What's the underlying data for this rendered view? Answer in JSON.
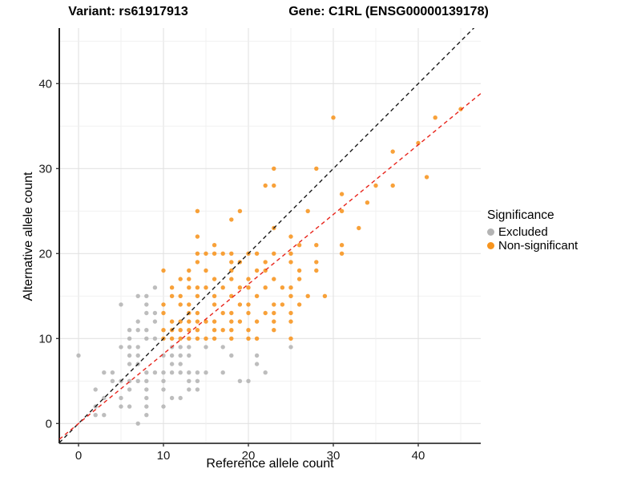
{
  "titles": {
    "variant": "Variant: rs61917913",
    "gene": "Gene: C1RL (ENSG00000139178)"
  },
  "legend": {
    "title": "Significance",
    "items": [
      {
        "label": "Excluded",
        "color": "#b4b4b4"
      },
      {
        "label": "Non-significant",
        "color": "#f7941e"
      }
    ]
  },
  "chart_data": {
    "type": "scatter",
    "title": "",
    "xlabel": "Reference allele count",
    "ylabel": "Alternative allele count",
    "x_ticks": [
      0,
      10,
      20,
      30,
      40
    ],
    "y_ticks": [
      0,
      10,
      20,
      30,
      40
    ],
    "x_range": [
      -2.26,
      47.4
    ],
    "y_range": [
      -2.33,
      46.5
    ],
    "grid": true,
    "legend_position": "right",
    "series": [
      {
        "name": "Excluded",
        "color": "#b4b4b4",
        "points": [
          [
            7,
            0
          ],
          [
            2,
            1
          ],
          [
            3,
            1
          ],
          [
            8,
            1
          ],
          [
            2,
            2
          ],
          [
            5,
            2
          ],
          [
            6,
            2
          ],
          [
            8,
            2
          ],
          [
            10,
            2
          ],
          [
            3,
            3
          ],
          [
            5,
            3
          ],
          [
            8,
            3
          ],
          [
            11,
            3
          ],
          [
            12,
            3
          ],
          [
            2,
            4
          ],
          [
            6,
            4
          ],
          [
            8,
            4
          ],
          [
            10,
            4
          ],
          [
            13,
            4
          ],
          [
            14,
            4
          ],
          [
            4,
            5
          ],
          [
            5,
            5
          ],
          [
            6,
            5
          ],
          [
            7,
            5
          ],
          [
            8,
            5
          ],
          [
            10,
            5
          ],
          [
            13,
            5
          ],
          [
            14,
            5
          ],
          [
            19,
            5
          ],
          [
            20,
            5
          ],
          [
            3,
            6
          ],
          [
            4,
            6
          ],
          [
            8,
            6
          ],
          [
            9,
            6
          ],
          [
            10,
            6
          ],
          [
            11,
            6
          ],
          [
            12,
            6
          ],
          [
            13,
            6
          ],
          [
            14,
            6
          ],
          [
            15,
            6
          ],
          [
            17,
            6
          ],
          [
            22,
            6
          ],
          [
            6,
            7
          ],
          [
            7,
            7
          ],
          [
            11,
            7
          ],
          [
            12,
            7
          ],
          [
            21,
            7
          ],
          [
            0,
            8
          ],
          [
            6,
            8
          ],
          [
            7,
            8
          ],
          [
            10,
            8
          ],
          [
            11,
            8
          ],
          [
            12,
            8
          ],
          [
            13,
            8
          ],
          [
            18,
            8
          ],
          [
            21,
            8
          ],
          [
            5,
            9
          ],
          [
            6,
            9
          ],
          [
            7,
            9
          ],
          [
            11,
            9
          ],
          [
            12,
            9
          ],
          [
            13,
            9
          ],
          [
            15,
            9
          ],
          [
            17,
            9
          ],
          [
            25,
            9
          ],
          [
            6,
            10
          ],
          [
            8,
            10
          ],
          [
            9,
            10
          ],
          [
            6,
            11
          ],
          [
            7,
            11
          ],
          [
            8,
            11
          ],
          [
            7,
            12
          ],
          [
            9,
            12
          ],
          [
            8,
            13
          ],
          [
            9,
            13
          ],
          [
            5,
            14
          ],
          [
            8,
            14
          ],
          [
            7,
            15
          ],
          [
            8,
            15
          ],
          [
            9,
            16
          ]
        ]
      },
      {
        "name": "Non-significant",
        "color": "#f7941e",
        "points": [
          [
            10,
            10
          ],
          [
            11,
            10
          ],
          [
            12,
            10
          ],
          [
            13,
            10
          ],
          [
            14,
            10
          ],
          [
            15,
            10
          ],
          [
            16,
            10
          ],
          [
            18,
            10
          ],
          [
            20,
            10
          ],
          [
            21,
            10
          ],
          [
            25,
            10
          ],
          [
            10,
            11
          ],
          [
            11,
            11
          ],
          [
            12,
            11
          ],
          [
            13,
            11
          ],
          [
            14,
            11
          ],
          [
            16,
            11
          ],
          [
            17,
            11
          ],
          [
            18,
            11
          ],
          [
            20,
            11
          ],
          [
            23,
            11
          ],
          [
            11,
            12
          ],
          [
            12,
            12
          ],
          [
            13,
            12
          ],
          [
            14,
            12
          ],
          [
            15,
            12
          ],
          [
            16,
            12
          ],
          [
            18,
            12
          ],
          [
            19,
            12
          ],
          [
            21,
            12
          ],
          [
            23,
            12
          ],
          [
            25,
            12
          ],
          [
            10,
            13
          ],
          [
            13,
            13
          ],
          [
            14,
            13
          ],
          [
            17,
            13
          ],
          [
            18,
            13
          ],
          [
            20,
            13
          ],
          [
            22,
            13
          ],
          [
            23,
            13
          ],
          [
            25,
            13
          ],
          [
            10,
            14
          ],
          [
            12,
            14
          ],
          [
            13,
            14
          ],
          [
            16,
            14
          ],
          [
            19,
            14
          ],
          [
            20,
            14
          ],
          [
            23,
            14
          ],
          [
            24,
            14
          ],
          [
            26,
            14
          ],
          [
            11,
            15
          ],
          [
            12,
            15
          ],
          [
            14,
            15
          ],
          [
            16,
            15
          ],
          [
            18,
            15
          ],
          [
            21,
            15
          ],
          [
            25,
            15
          ],
          [
            27,
            15
          ],
          [
            29,
            15
          ],
          [
            11,
            16
          ],
          [
            13,
            16
          ],
          [
            14,
            16
          ],
          [
            15,
            16
          ],
          [
            17,
            16
          ],
          [
            19,
            16
          ],
          [
            20,
            16
          ],
          [
            22,
            16
          ],
          [
            24,
            16
          ],
          [
            25,
            16
          ],
          [
            12,
            17
          ],
          [
            13,
            17
          ],
          [
            16,
            17
          ],
          [
            18,
            17
          ],
          [
            20,
            17
          ],
          [
            23,
            17
          ],
          [
            26,
            17
          ],
          [
            10,
            18
          ],
          [
            13,
            18
          ],
          [
            15,
            18
          ],
          [
            18,
            18
          ],
          [
            21,
            18
          ],
          [
            22,
            18
          ],
          [
            26,
            18
          ],
          [
            28,
            18
          ],
          [
            14,
            19
          ],
          [
            18,
            19
          ],
          [
            19,
            19
          ],
          [
            22,
            19
          ],
          [
            25,
            19
          ],
          [
            28,
            19
          ],
          [
            14,
            20
          ],
          [
            15,
            20
          ],
          [
            16,
            20
          ],
          [
            17,
            20
          ],
          [
            18,
            20
          ],
          [
            20,
            20
          ],
          [
            21,
            20
          ],
          [
            23,
            20
          ],
          [
            25,
            20
          ],
          [
            31,
            20
          ],
          [
            16,
            21
          ],
          [
            26,
            21
          ],
          [
            28,
            21
          ],
          [
            31,
            21
          ],
          [
            14,
            22
          ],
          [
            25,
            22
          ],
          [
            23,
            23
          ],
          [
            33,
            23
          ],
          [
            18,
            24
          ],
          [
            14,
            25
          ],
          [
            19,
            25
          ],
          [
            27,
            25
          ],
          [
            31,
            25
          ],
          [
            34,
            26
          ],
          [
            31,
            27
          ],
          [
            22,
            28
          ],
          [
            23,
            28
          ],
          [
            35,
            28
          ],
          [
            37,
            28
          ],
          [
            41,
            29
          ],
          [
            23,
            30
          ],
          [
            28,
            30
          ],
          [
            37,
            32
          ],
          [
            40,
            33
          ],
          [
            30,
            36
          ],
          [
            42,
            36
          ],
          [
            45,
            37
          ]
        ]
      }
    ],
    "lines": [
      {
        "name": "identity-line",
        "color": "#1a1a1a",
        "style": "dashed",
        "slope": 1,
        "intercept": 0
      },
      {
        "name": "fit-line",
        "color": "#e8251c",
        "style": "dashed",
        "slope": 0.82,
        "intercept": 0
      }
    ]
  }
}
